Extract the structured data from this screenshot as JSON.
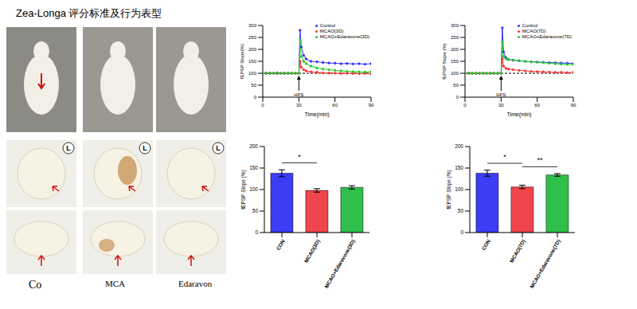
{
  "photo_panel": {
    "title": "Zea-Longa 评分标准及行为表型",
    "side_marker": "L",
    "group_labels": [
      "Co",
      "MCA",
      "Edaravon"
    ]
  },
  "chart_data": [
    {
      "type": "line",
      "x_label": "Time(min)",
      "y_label": "fEPSP Slope(%)",
      "x": [
        0,
        3,
        6,
        9,
        12,
        15,
        18,
        21,
        24,
        27,
        30,
        31,
        32,
        34,
        36,
        40,
        45,
        50,
        55,
        60,
        65,
        70,
        75,
        80,
        85,
        90
      ],
      "xlim": [
        0,
        90
      ],
      "xticks": [
        0,
        30,
        60,
        90
      ],
      "ylim": [
        0,
        300
      ],
      "yticks": [
        0,
        50,
        100,
        150,
        200,
        250,
        300
      ],
      "baseline": 100,
      "annotations": [
        {
          "text": "HFS",
          "x": 30
        }
      ],
      "legend": "upper right",
      "series": [
        {
          "name": "Control",
          "color": "#3333ff",
          "marker": "circle",
          "values": [
            100,
            101,
            99,
            100,
            102,
            100,
            99,
            101,
            100,
            100,
            100,
            280,
            210,
            175,
            160,
            150,
            148,
            145,
            143,
            142,
            140,
            141,
            139,
            140,
            138,
            140
          ]
        },
        {
          "name": "MCAO(3D)",
          "color": "#ff3333",
          "marker": "circle",
          "values": [
            100,
            99,
            101,
            100,
            98,
            100,
            101,
            99,
            100,
            100,
            100,
            150,
            125,
            115,
            110,
            106,
            104,
            102,
            101,
            100,
            99,
            100,
            99,
            98,
            99,
            98
          ]
        },
        {
          "name": "MCAO+Edaravone(3D)",
          "color": "#22cc22",
          "marker": "circle",
          "values": [
            100,
            100,
            99,
            101,
            100,
            99,
            100,
            100,
            101,
            100,
            100,
            240,
            170,
            150,
            140,
            130,
            122,
            118,
            115,
            112,
            110,
            108,
            107,
            106,
            105,
            106
          ]
        }
      ]
    },
    {
      "type": "line",
      "x_label": "Time(min)",
      "y_label": "fEPSP Slope (%)",
      "x": [
        0,
        3,
        6,
        9,
        12,
        15,
        18,
        21,
        24,
        27,
        30,
        31,
        32,
        34,
        36,
        40,
        45,
        50,
        55,
        60,
        65,
        70,
        75,
        80,
        85,
        90
      ],
      "xlim": [
        0,
        90
      ],
      "xticks": [
        0,
        30,
        60,
        90
      ],
      "ylim": [
        0,
        300
      ],
      "yticks": [
        0,
        50,
        100,
        150,
        200,
        250,
        300
      ],
      "baseline": 100,
      "annotations": [
        {
          "text": "HFS",
          "x": 30
        }
      ],
      "legend": "upper right",
      "series": [
        {
          "name": "Control",
          "color": "#3333ff",
          "marker": "circle",
          "values": [
            100,
            101,
            100,
            99,
            100,
            101,
            100,
            99,
            100,
            100,
            100,
            290,
            190,
            165,
            158,
            155,
            152,
            150,
            148,
            147,
            146,
            145,
            144,
            143,
            142,
            141
          ]
        },
        {
          "name": "MCAO(7D)",
          "color": "#ff3333",
          "marker": "circle",
          "values": [
            100,
            99,
            100,
            101,
            100,
            99,
            100,
            101,
            100,
            99,
            100,
            160,
            130,
            120,
            118,
            115,
            112,
            110,
            108,
            107,
            106,
            105,
            104,
            104,
            103,
            104
          ]
        },
        {
          "name": "MCAO+Edaravone(7D)",
          "color": "#22cc22",
          "marker": "circle",
          "values": [
            100,
            100,
            101,
            99,
            100,
            100,
            99,
            100,
            101,
            100,
            100,
            230,
            170,
            160,
            157,
            155,
            153,
            150,
            148,
            146,
            144,
            142,
            140,
            138,
            137,
            136
          ]
        }
      ]
    },
    {
      "type": "bar",
      "y_label": "fEPSP Slope (%)",
      "categories": [
        "CON",
        "MCAO(3D)",
        "MCAO+Edaravone(3D)"
      ],
      "values": [
        138,
        98,
        105
      ],
      "errors": [
        8,
        4,
        4
      ],
      "colors": [
        "#3d3df5",
        "#f0454d",
        "#2ec04b"
      ],
      "ylim": [
        0,
        200
      ],
      "yticks": [
        0,
        50,
        100,
        150,
        200
      ],
      "significance": [
        {
          "between": [
            "CON",
            "MCAO(3D)"
          ],
          "text": "*"
        }
      ]
    },
    {
      "type": "bar",
      "y_label": "fEPSP Slope (%)",
      "categories": [
        "CON",
        "MCAO(7D)",
        "MCAO+Edaravone(7D)"
      ],
      "values": [
        138,
        106,
        134
      ],
      "errors": [
        7,
        4,
        3
      ],
      "colors": [
        "#3d3df5",
        "#f0454d",
        "#2ec04b"
      ],
      "ylim": [
        0,
        200
      ],
      "yticks": [
        0,
        50,
        100,
        150,
        200
      ],
      "significance": [
        {
          "between": [
            "CON",
            "MCAO(7D)"
          ],
          "text": "*"
        },
        {
          "between": [
            "MCAO(7D)",
            "MCAO+Edaravone(7D)"
          ],
          "text": "**"
        }
      ]
    }
  ]
}
